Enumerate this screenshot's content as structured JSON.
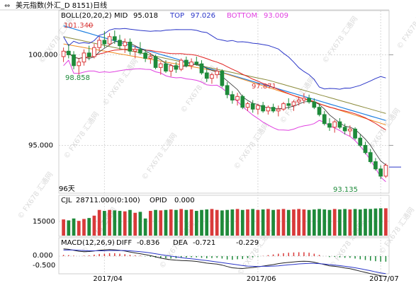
{
  "header": {
    "nav_icon": "link-arrows-icon",
    "title": "美元指数(外汇_D 8151)日线"
  },
  "overlay": {
    "boll_label": "BOLL(20,20,2)",
    "mid_label": "MID",
    "mid_value": "95.018",
    "top_label": "TOP",
    "top_value": "97.026",
    "bottom_label": "BOTTOM",
    "bottom_value": "93.009",
    "high_marker": "101.340",
    "low_marker_1": "98.858",
    "peak_marker": "97.871",
    "last_low_marker": "93.135",
    "period_label": "96天"
  },
  "volume_panel": {
    "label": "CJL",
    "value": "28711.000(0:100)",
    "opid_label": "OPID",
    "opid_value": "0.000",
    "tick": "15000"
  },
  "macd_panel": {
    "label": "MACD(12,26,9)",
    "diff_label": "DIFF",
    "diff_value": "-0.836",
    "dea_label": "DEA",
    "dea_value": "-0.721",
    "macd_value": "-0.229",
    "ticks": [
      "0.000",
      "-0.500"
    ]
  },
  "watermark": "FX678 汇通网",
  "colors": {
    "up": "#d93a3a",
    "down": "#1e8a3a",
    "boll_top": "#2b36c8",
    "boll_mid": "#e0a020",
    "boll_bottom": "#e040e0",
    "trend": "#2080e0",
    "ma_red": "#e02020",
    "ma_orange": "#f08a20",
    "ma_olive": "#8a8a3a",
    "ma_black": "#333333",
    "grid": "#d8d8d8"
  },
  "chart_data": {
    "type": "candlestick",
    "x_tick_labels": [
      "2017/04",
      "2017/06",
      "2017/07"
    ],
    "y_ticks": [
      100.0,
      95.0
    ],
    "y_tick_labels": [
      "100.000",
      "95.000"
    ],
    "ylim": [
      92.4,
      102.4
    ],
    "candles": [
      {
        "o": 99.9,
        "h": 100.4,
        "l": 99.6,
        "c": 100.2
      },
      {
        "o": 100.2,
        "h": 100.6,
        "l": 99.8,
        "c": 100.0
      },
      {
        "o": 100.0,
        "h": 100.2,
        "l": 99.2,
        "c": 99.4
      },
      {
        "o": 99.4,
        "h": 99.8,
        "l": 98.9,
        "c": 99.6
      },
      {
        "o": 99.6,
        "h": 100.3,
        "l": 99.4,
        "c": 100.1
      },
      {
        "o": 100.1,
        "h": 100.5,
        "l": 99.7,
        "c": 99.9
      },
      {
        "o": 99.9,
        "h": 100.6,
        "l": 99.8,
        "c": 100.4
      },
      {
        "o": 100.4,
        "h": 101.0,
        "l": 100.2,
        "c": 100.8
      },
      {
        "o": 100.8,
        "h": 101.3,
        "l": 100.4,
        "c": 100.6
      },
      {
        "o": 100.6,
        "h": 101.2,
        "l": 100.5,
        "c": 101.0
      },
      {
        "o": 101.0,
        "h": 101.34,
        "l": 100.6,
        "c": 100.8
      },
      {
        "o": 100.8,
        "h": 101.1,
        "l": 100.3,
        "c": 100.5
      },
      {
        "o": 100.5,
        "h": 100.9,
        "l": 100.1,
        "c": 100.7
      },
      {
        "o": 100.7,
        "h": 100.9,
        "l": 100.0,
        "c": 100.2
      },
      {
        "o": 100.2,
        "h": 100.5,
        "l": 99.8,
        "c": 100.3
      },
      {
        "o": 100.3,
        "h": 100.7,
        "l": 100.0,
        "c": 100.1
      },
      {
        "o": 100.1,
        "h": 100.3,
        "l": 99.6,
        "c": 99.8
      },
      {
        "o": 99.8,
        "h": 100.1,
        "l": 99.5,
        "c": 99.9
      },
      {
        "o": 99.9,
        "h": 100.0,
        "l": 99.2,
        "c": 99.3
      },
      {
        "o": 99.3,
        "h": 99.6,
        "l": 98.9,
        "c": 99.5
      },
      {
        "o": 99.5,
        "h": 99.7,
        "l": 99.0,
        "c": 99.1
      },
      {
        "o": 99.1,
        "h": 99.5,
        "l": 98.8,
        "c": 99.4
      },
      {
        "o": 99.4,
        "h": 99.6,
        "l": 99.0,
        "c": 99.2
      },
      {
        "o": 99.2,
        "h": 99.8,
        "l": 99.1,
        "c": 99.7
      },
      {
        "o": 99.7,
        "h": 99.9,
        "l": 99.3,
        "c": 99.4
      },
      {
        "o": 99.4,
        "h": 99.8,
        "l": 99.2,
        "c": 99.6
      },
      {
        "o": 99.6,
        "h": 99.9,
        "l": 99.4,
        "c": 99.5
      },
      {
        "o": 99.5,
        "h": 99.7,
        "l": 98.9,
        "c": 99.0
      },
      {
        "o": 99.0,
        "h": 99.3,
        "l": 98.5,
        "c": 98.7
      },
      {
        "o": 98.7,
        "h": 99.0,
        "l": 98.4,
        "c": 98.9
      },
      {
        "o": 98.9,
        "h": 99.3,
        "l": 98.7,
        "c": 99.1
      },
      {
        "o": 99.1,
        "h": 99.2,
        "l": 98.2,
        "c": 98.3
      },
      {
        "o": 98.3,
        "h": 98.5,
        "l": 97.6,
        "c": 97.8
      },
      {
        "o": 97.8,
        "h": 98.0,
        "l": 97.3,
        "c": 97.5
      },
      {
        "o": 97.5,
        "h": 97.9,
        "l": 97.2,
        "c": 97.7
      },
      {
        "o": 97.7,
        "h": 97.8,
        "l": 97.0,
        "c": 97.1
      },
      {
        "o": 97.1,
        "h": 97.4,
        "l": 96.9,
        "c": 97.3
      },
      {
        "o": 97.3,
        "h": 97.5,
        "l": 96.8,
        "c": 97.0
      },
      {
        "o": 97.0,
        "h": 97.3,
        "l": 96.7,
        "c": 97.2
      },
      {
        "o": 97.2,
        "h": 97.4,
        "l": 96.8,
        "c": 96.9
      },
      {
        "o": 96.9,
        "h": 97.2,
        "l": 96.7,
        "c": 97.1
      },
      {
        "o": 97.1,
        "h": 97.3,
        "l": 96.8,
        "c": 96.9
      },
      {
        "o": 96.9,
        "h": 97.2,
        "l": 96.6,
        "c": 97.0
      },
      {
        "o": 97.0,
        "h": 97.4,
        "l": 96.9,
        "c": 97.3
      },
      {
        "o": 97.3,
        "h": 97.6,
        "l": 97.0,
        "c": 97.2
      },
      {
        "o": 97.2,
        "h": 97.5,
        "l": 96.9,
        "c": 97.4
      },
      {
        "o": 97.4,
        "h": 97.7,
        "l": 97.2,
        "c": 97.5
      },
      {
        "o": 97.5,
        "h": 97.871,
        "l": 97.3,
        "c": 97.6
      },
      {
        "o": 97.6,
        "h": 97.8,
        "l": 97.3,
        "c": 97.4
      },
      {
        "o": 97.4,
        "h": 97.6,
        "l": 97.0,
        "c": 97.1
      },
      {
        "o": 97.1,
        "h": 97.3,
        "l": 96.6,
        "c": 96.7
      },
      {
        "o": 96.7,
        "h": 96.9,
        "l": 96.1,
        "c": 96.2
      },
      {
        "o": 96.2,
        "h": 96.5,
        "l": 95.8,
        "c": 96.0
      },
      {
        "o": 96.0,
        "h": 96.4,
        "l": 95.7,
        "c": 96.3
      },
      {
        "o": 96.3,
        "h": 96.5,
        "l": 95.9,
        "c": 96.0
      },
      {
        "o": 96.0,
        "h": 96.2,
        "l": 95.6,
        "c": 95.8
      },
      {
        "o": 95.8,
        "h": 96.1,
        "l": 95.5,
        "c": 95.9
      },
      {
        "o": 95.9,
        "h": 96.0,
        "l": 95.3,
        "c": 95.4
      },
      {
        "o": 95.4,
        "h": 95.6,
        "l": 94.9,
        "c": 95.0
      },
      {
        "o": 95.0,
        "h": 95.2,
        "l": 94.5,
        "c": 94.6
      },
      {
        "o": 94.6,
        "h": 94.8,
        "l": 94.0,
        "c": 94.1
      },
      {
        "o": 94.1,
        "h": 94.3,
        "l": 93.6,
        "c": 93.7
      },
      {
        "o": 93.7,
        "h": 93.9,
        "l": 93.135,
        "c": 93.3
      },
      {
        "o": 93.3,
        "h": 94.0,
        "l": 93.2,
        "c": 93.9
      }
    ],
    "volume": [
      {
        "v": 17000,
        "up": true
      },
      {
        "v": 16000,
        "up": false
      },
      {
        "v": 18000,
        "up": false
      },
      {
        "v": 15500,
        "up": true
      },
      {
        "v": 17500,
        "up": true
      },
      {
        "v": 18500,
        "up": false
      },
      {
        "v": 21000,
        "up": true
      },
      {
        "v": 27000,
        "up": true
      },
      {
        "v": 26000,
        "up": false
      },
      {
        "v": 27000,
        "up": true
      },
      {
        "v": 26500,
        "up": false
      },
      {
        "v": 26000,
        "up": false
      },
      {
        "v": 25500,
        "up": true
      },
      {
        "v": 27000,
        "up": false
      },
      {
        "v": 24000,
        "up": true
      },
      {
        "v": 25000,
        "up": false
      },
      {
        "v": 18000,
        "up": false
      },
      {
        "v": 26000,
        "up": true
      },
      {
        "v": 27000,
        "up": false
      },
      {
        "v": 26500,
        "up": true
      },
      {
        "v": 27000,
        "up": false
      },
      {
        "v": 27500,
        "up": true
      },
      {
        "v": 27000,
        "up": false
      },
      {
        "v": 28000,
        "up": true
      },
      {
        "v": 27000,
        "up": false
      },
      {
        "v": 27500,
        "up": true
      },
      {
        "v": 26000,
        "up": false
      },
      {
        "v": 27000,
        "up": false
      },
      {
        "v": 27500,
        "up": false
      },
      {
        "v": 28000,
        "up": true
      },
      {
        "v": 27000,
        "up": true
      },
      {
        "v": 26500,
        "up": false
      },
      {
        "v": 27000,
        "up": false
      },
      {
        "v": 27500,
        "up": false
      },
      {
        "v": 28000,
        "up": true
      },
      {
        "v": 27000,
        "up": false
      },
      {
        "v": 27500,
        "up": true
      },
      {
        "v": 28000,
        "up": false
      },
      {
        "v": 27000,
        "up": true
      },
      {
        "v": 27500,
        "up": false
      },
      {
        "v": 28000,
        "up": true
      },
      {
        "v": 27000,
        "up": false
      },
      {
        "v": 27500,
        "up": true
      },
      {
        "v": 28000,
        "up": true
      },
      {
        "v": 27000,
        "up": false
      },
      {
        "v": 27500,
        "up": true
      },
      {
        "v": 28000,
        "up": true
      },
      {
        "v": 27500,
        "up": true
      },
      {
        "v": 27000,
        "up": false
      },
      {
        "v": 27500,
        "up": false
      },
      {
        "v": 28000,
        "up": false
      },
      {
        "v": 27500,
        "up": false
      },
      {
        "v": 27000,
        "up": false
      },
      {
        "v": 28000,
        "up": true
      },
      {
        "v": 27500,
        "up": false
      },
      {
        "v": 28000,
        "up": false
      },
      {
        "v": 27500,
        "up": true
      },
      {
        "v": 28000,
        "up": false
      },
      {
        "v": 27500,
        "up": false
      },
      {
        "v": 28200,
        "up": false
      },
      {
        "v": 28000,
        "up": false
      },
      {
        "v": 28500,
        "up": false
      },
      {
        "v": 28711,
        "up": false
      },
      {
        "v": 28711,
        "up": true
      }
    ],
    "volume_ylim": [
      0,
      32000
    ],
    "macd_hist": [
      0.05,
      0.04,
      0.02,
      0.0,
      0.02,
      0.03,
      0.06,
      0.09,
      0.1,
      0.12,
      0.12,
      0.1,
      0.08,
      0.05,
      0.03,
      0.02,
      -0.01,
      -0.03,
      -0.06,
      -0.08,
      -0.09,
      -0.1,
      -0.09,
      -0.07,
      -0.06,
      -0.05,
      -0.05,
      -0.07,
      -0.09,
      -0.08,
      -0.07,
      -0.1,
      -0.14,
      -0.15,
      -0.13,
      -0.12,
      -0.08,
      -0.05,
      -0.02,
      0.01,
      0.04,
      0.07,
      0.1,
      0.12,
      0.14,
      0.15,
      0.16,
      0.16,
      0.14,
      0.1,
      0.05,
      0.0,
      -0.04,
      -0.03,
      -0.05,
      -0.07,
      -0.07,
      -0.1,
      -0.13,
      -0.16,
      -0.19,
      -0.21,
      -0.23,
      -0.229
    ],
    "macd_ylim": [
      -0.7,
      0.35
    ],
    "macd_diff": [
      0.3,
      0.28,
      0.24,
      0.2,
      0.18,
      0.19,
      0.21,
      0.24,
      0.26,
      0.27,
      0.26,
      0.24,
      0.21,
      0.17,
      0.13,
      0.1,
      0.06,
      0.02,
      -0.03,
      -0.08,
      -0.12,
      -0.15,
      -0.17,
      -0.18,
      -0.19,
      -0.2,
      -0.22,
      -0.25,
      -0.29,
      -0.31,
      -0.33,
      -0.37,
      -0.43,
      -0.48,
      -0.5,
      -0.51,
      -0.49,
      -0.47,
      -0.44,
      -0.41,
      -0.38,
      -0.35,
      -0.31,
      -0.28,
      -0.26,
      -0.24,
      -0.22,
      -0.21,
      -0.22,
      -0.25,
      -0.3,
      -0.35,
      -0.4,
      -0.42,
      -0.45,
      -0.49,
      -0.52,
      -0.57,
      -0.62,
      -0.67,
      -0.72,
      -0.77,
      -0.81,
      -0.836
    ],
    "macd_dea": [
      0.25,
      0.25,
      0.25,
      0.24,
      0.23,
      0.22,
      0.22,
      0.22,
      0.22,
      0.23,
      0.23,
      0.23,
      0.23,
      0.22,
      0.2,
      0.18,
      0.16,
      0.13,
      0.1,
      0.06,
      0.03,
      0.0,
      -0.03,
      -0.06,
      -0.09,
      -0.11,
      -0.13,
      -0.16,
      -0.18,
      -0.21,
      -0.24,
      -0.27,
      -0.3,
      -0.33,
      -0.36,
      -0.39,
      -0.41,
      -0.42,
      -0.43,
      -0.42,
      -0.42,
      -0.41,
      -0.4,
      -0.38,
      -0.36,
      -0.34,
      -0.32,
      -0.31,
      -0.3,
      -0.3,
      -0.31,
      -0.33,
      -0.35,
      -0.37,
      -0.39,
      -0.42,
      -0.45,
      -0.48,
      -0.52,
      -0.56,
      -0.6,
      -0.65,
      -0.69,
      -0.721
    ],
    "grid": true
  }
}
